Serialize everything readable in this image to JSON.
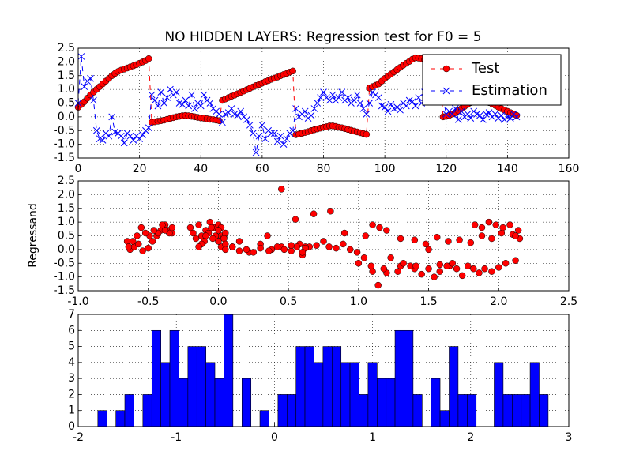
{
  "chart_data": [
    {
      "type": "line",
      "title": "NO HIDDEN LAYERS: Regression test for F0 = 5",
      "x": [
        0,
        1,
        2,
        3,
        4,
        5,
        6,
        7,
        8,
        9,
        10,
        11,
        12,
        13,
        14,
        15,
        16,
        17,
        18,
        19,
        20,
        21,
        22,
        23,
        24,
        25,
        26,
        27,
        28,
        29,
        30,
        31,
        32,
        33,
        34,
        35,
        36,
        37,
        38,
        39,
        40,
        41,
        42,
        43,
        44,
        45,
        46,
        47,
        48,
        49,
        50,
        51,
        52,
        53,
        54,
        55,
        56,
        57,
        58,
        59,
        60,
        61,
        62,
        63,
        64,
        65,
        66,
        67,
        68,
        69,
        70,
        71,
        72,
        73,
        74,
        75,
        76,
        77,
        78,
        79,
        80,
        81,
        82,
        83,
        84,
        85,
        86,
        87,
        88,
        89,
        90,
        91,
        92,
        93,
        94,
        95,
        96,
        97,
        98,
        99,
        100,
        101,
        102,
        103,
        104,
        105,
        106,
        107,
        108,
        109,
        110,
        111,
        112,
        113,
        114,
        115,
        116,
        117,
        118,
        119,
        120,
        121,
        122,
        123,
        124,
        125,
        126,
        127,
        128,
        129,
        130,
        131,
        132,
        133,
        134,
        135,
        136,
        137,
        138,
        139,
        140,
        141,
        142,
        143
      ],
      "xlim": [
        0,
        160
      ],
      "xticks": [
        0,
        20,
        40,
        60,
        80,
        100,
        120,
        140,
        160
      ],
      "ylim": [
        -1.5,
        2.5
      ],
      "yticks": [
        -1.5,
        {
          "value": -1,
          "label": "-1.0"
        },
        -0.5,
        {
          "value": 0,
          "label": "0.0"
        },
        0.5,
        {
          "value": 1,
          "label": "1.0"
        },
        1.5,
        {
          "value": 2,
          "label": "2.0"
        },
        2.5
      ],
      "grid": true,
      "legend": "upper right",
      "series": [
        {
          "name": "Test",
          "color": "#ff0000",
          "marker": "o",
          "values": [
            0.35,
            0.45,
            0.55,
            0.68,
            0.8,
            0.9,
            1.0,
            1.1,
            1.2,
            1.3,
            1.4,
            1.5,
            1.58,
            1.65,
            1.7,
            1.74,
            1.78,
            1.82,
            1.86,
            1.9,
            1.95,
            2.0,
            2.05,
            2.12,
            -0.2,
            -0.18,
            -0.16,
            -0.14,
            -0.12,
            -0.09,
            -0.06,
            -0.03,
            0.0,
            0.02,
            0.04,
            0.05,
            0.04,
            0.02,
            0.0,
            -0.02,
            -0.04,
            -0.05,
            -0.07,
            -0.09,
            -0.1,
            -0.12,
            -0.14,
            0.6,
            0.65,
            0.7,
            0.75,
            0.79,
            0.84,
            0.89,
            0.94,
            0.99,
            1.04,
            1.09,
            1.14,
            1.18,
            1.23,
            1.28,
            1.32,
            1.37,
            1.41,
            1.45,
            1.5,
            1.54,
            1.58,
            1.63,
            1.67,
            -0.65,
            -0.63,
            -0.6,
            -0.57,
            -0.54,
            -0.5,
            -0.47,
            -0.44,
            -0.41,
            -0.38,
            -0.36,
            -0.33,
            -0.33,
            -0.35,
            -0.38,
            -0.4,
            -0.43,
            -0.46,
            -0.49,
            -0.52,
            -0.55,
            -0.58,
            -0.61,
            -0.64,
            1.05,
            1.1,
            1.15,
            1.2,
            1.3,
            1.4,
            1.48,
            1.56,
            1.64,
            1.72,
            1.8,
            1.88,
            1.95,
            2.02,
            2.1,
            2.15,
            2.14,
            2.12,
            2.08,
            2.03,
            1.98,
            1.93,
            1.88,
            1.83,
            0.0,
            0.02,
            0.05,
            0.1,
            0.15,
            0.22,
            0.3,
            0.38,
            0.45,
            0.52,
            0.58,
            0.62,
            0.62,
            0.6,
            0.56,
            0.52,
            0.47,
            0.42,
            0.36,
            0.3,
            0.25,
            0.2,
            0.15,
            0.1,
            0.05
          ]
        },
        {
          "name": "Estimation",
          "color": "#0000ff",
          "marker": "x",
          "values": [
            0.5,
            2.2,
            1.1,
            1.3,
            1.4,
            0.6,
            -0.5,
            -0.8,
            -0.85,
            -0.6,
            -0.7,
            0.0,
            -0.55,
            -0.6,
            -0.7,
            -0.95,
            -0.6,
            -0.7,
            -0.85,
            -0.7,
            -0.8,
            -0.65,
            -0.5,
            -0.4,
            0.8,
            0.6,
            0.4,
            0.9,
            0.5,
            0.7,
            1.0,
            0.8,
            0.9,
            0.5,
            0.45,
            0.6,
            0.4,
            0.8,
            0.3,
            0.5,
            0.4,
            0.8,
            0.6,
            0.5,
            0.3,
            0.2,
            0.1,
            -0.2,
            0.1,
            0.15,
            0.3,
            0.1,
            0.05,
            0.2,
            0.0,
            -0.1,
            -0.3,
            -0.6,
            -1.3,
            -0.7,
            -0.3,
            -0.8,
            -0.5,
            -0.6,
            -0.6,
            -0.9,
            -0.7,
            -1.0,
            -0.8,
            -0.6,
            -0.5,
            0.3,
            0.0,
            0.1,
            0.2,
            -0.05,
            0.05,
            0.3,
            0.5,
            0.7,
            0.9,
            0.7,
            0.6,
            0.8,
            0.6,
            0.7,
            0.9,
            0.6,
            0.7,
            0.5,
            0.6,
            0.8,
            0.5,
            0.3,
            0.1,
            0.5,
            0.9,
            0.8,
            0.7,
            0.4,
            0.35,
            0.2,
            0.45,
            0.3,
            0.35,
            0.25,
            0.5,
            0.4,
            0.6,
            0.55,
            0.4,
            0.7,
            0.5,
            0.9,
            0.8,
            0.9,
            1.0,
            0.8,
            0.9,
            0.7,
            0.1,
            0.2,
            0.1,
            0.3,
            -0.1,
            0.2,
            0.0,
            0.1,
            -0.05,
            0.2,
            0.1,
            0.05,
            -0.1,
            0.1,
            0.15,
            0.0,
            0.1,
            -0.05,
            0.05,
            -0.1,
            0.0,
            -0.05,
            0.1,
            0.0
          ]
        }
      ]
    },
    {
      "type": "scatter",
      "y_label": "Regressand",
      "color": "#ff0000",
      "x": [
        0.35,
        0.45,
        0.55,
        0.68,
        0.8,
        0.9,
        1.0,
        1.1,
        1.2,
        1.3,
        1.4,
        1.5,
        1.58,
        1.65,
        1.7,
        1.74,
        1.78,
        1.82,
        1.86,
        1.9,
        1.95,
        2.0,
        2.05,
        2.12,
        -0.2,
        -0.18,
        -0.16,
        -0.14,
        -0.12,
        -0.09,
        -0.06,
        -0.03,
        0.0,
        0.02,
        0.04,
        0.05,
        0.04,
        0.02,
        0.0,
        -0.02,
        -0.04,
        -0.05,
        -0.07,
        -0.09,
        -0.1,
        -0.12,
        -0.14,
        0.6,
        0.65,
        0.7,
        0.75,
        0.79,
        0.84,
        0.89,
        0.94,
        0.99,
        1.04,
        1.09,
        1.14,
        1.18,
        1.23,
        1.28,
        1.32,
        1.37,
        1.41,
        1.45,
        1.5,
        1.54,
        1.58,
        1.63,
        1.67,
        -0.65,
        -0.63,
        -0.6,
        -0.57,
        -0.54,
        -0.5,
        -0.47,
        -0.44,
        -0.41,
        -0.38,
        -0.36,
        -0.33,
        -0.33,
        -0.35,
        -0.38,
        -0.4,
        -0.43,
        -0.46,
        -0.49,
        -0.52,
        -0.55,
        -0.58,
        -0.61,
        -0.64,
        1.05,
        1.1,
        1.15,
        1.2,
        1.3,
        1.4,
        1.48,
        1.56,
        1.64,
        1.72,
        1.8,
        1.88,
        1.95,
        2.02,
        2.1,
        2.15,
        2.14,
        2.12,
        2.08,
        2.03,
        1.98,
        1.93,
        1.88,
        1.83,
        0.0,
        0.02,
        0.05,
        0.1,
        0.15,
        0.22,
        0.3,
        0.38,
        0.45,
        0.52,
        0.58,
        0.62,
        0.62,
        0.6,
        0.56,
        0.52,
        0.47,
        0.42,
        0.36,
        0.3,
        0.25,
        0.2,
        0.15,
        0.1,
        0.05
      ],
      "values": [
        0.5,
        2.2,
        1.1,
        1.3,
        1.4,
        0.6,
        -0.5,
        -0.8,
        -0.85,
        -0.6,
        -0.7,
        0.0,
        -0.55,
        -0.6,
        -0.7,
        -0.95,
        -0.6,
        -0.7,
        -0.85,
        -0.7,
        -0.8,
        -0.65,
        -0.5,
        -0.4,
        0.8,
        0.6,
        0.4,
        0.9,
        0.5,
        0.7,
        1.0,
        0.8,
        0.9,
        0.5,
        0.45,
        0.6,
        0.4,
        0.8,
        0.3,
        0.5,
        0.4,
        0.8,
        0.6,
        0.5,
        0.3,
        0.2,
        0.1,
        -0.2,
        0.1,
        0.15,
        0.3,
        0.1,
        0.05,
        0.2,
        0.0,
        -0.1,
        -0.3,
        -0.6,
        -1.3,
        -0.7,
        -0.3,
        -0.8,
        -0.5,
        -0.6,
        -0.6,
        -0.9,
        -0.7,
        -1.0,
        -0.8,
        -0.6,
        -0.5,
        0.3,
        0.0,
        0.1,
        0.2,
        -0.05,
        0.05,
        0.3,
        0.5,
        0.7,
        0.9,
        0.7,
        0.6,
        0.8,
        0.6,
        0.7,
        0.9,
        0.6,
        0.7,
        0.5,
        0.6,
        0.8,
        0.5,
        0.3,
        0.1,
        0.5,
        0.9,
        0.8,
        0.7,
        0.4,
        0.35,
        0.2,
        0.45,
        0.3,
        0.35,
        0.25,
        0.5,
        0.4,
        0.6,
        0.55,
        0.4,
        0.7,
        0.5,
        0.9,
        0.8,
        0.9,
        1.0,
        0.8,
        0.9,
        0.7,
        0.1,
        0.2,
        0.1,
        0.3,
        -0.1,
        0.2,
        0.0,
        0.1,
        -0.05,
        0.2,
        0.1,
        0.05,
        -0.1,
        0.1,
        0.15,
        0.0,
        0.1,
        -0.05,
        0.05,
        -0.1,
        0.0,
        -0.05,
        0.1,
        0.0
      ],
      "xlim": [
        -1,
        2.5
      ],
      "xticks": [
        {
          "value": -1,
          "label": "-1.0"
        },
        -0.5,
        {
          "value": 0,
          "label": "0.0"
        },
        0.5,
        {
          "value": 1,
          "label": "1.0"
        },
        1.5,
        {
          "value": 2,
          "label": "2.0"
        },
        2.5
      ],
      "ylim": [
        -1.5,
        2.5
      ],
      "yticks": [
        -1.5,
        {
          "value": -1,
          "label": "-1.0"
        },
        -0.5,
        {
          "value": 0,
          "label": "0.0"
        },
        0.5,
        {
          "value": 1,
          "label": "1.0"
        },
        1.5,
        {
          "value": 2,
          "label": "2.0"
        },
        2.5
      ],
      "grid": true
    },
    {
      "type": "histogram",
      "color": "#0000ff",
      "bins": [
        -1.8,
        -1.708,
        -1.616,
        -1.525,
        -1.433,
        -1.341,
        -1.249,
        -1.157,
        -1.066,
        -0.974,
        -0.882,
        -0.79,
        -0.698,
        -0.607,
        -0.515,
        -0.423,
        -0.331,
        -0.239,
        -0.148,
        -0.056,
        0.036,
        0.128,
        0.22,
        0.311,
        0.403,
        0.495,
        0.587,
        0.679,
        0.77,
        0.862,
        0.954,
        1.046,
        1.138,
        1.229,
        1.321,
        1.413,
        1.505,
        1.597,
        1.688,
        1.78,
        1.872,
        1.964,
        2.056,
        2.147,
        2.239,
        2.331,
        2.423,
        2.515,
        2.606,
        2.698,
        2.79
      ],
      "values": [
        1,
        0,
        1,
        2,
        0,
        2,
        6,
        4,
        6,
        3,
        5,
        5,
        4,
        3,
        7,
        0,
        3,
        0,
        1,
        0,
        2,
        2,
        5,
        5,
        4,
        5,
        5,
        4,
        4,
        2,
        4,
        3,
        3,
        6,
        6,
        2,
        0,
        3,
        1,
        5,
        2,
        2,
        0,
        0,
        4,
        2,
        2,
        2,
        4,
        2
      ],
      "xlim": [
        -2,
        3
      ],
      "xticks": [
        -2,
        -1,
        0,
        1,
        2,
        3
      ],
      "ylim": [
        0,
        7
      ],
      "yticks": [
        0,
        1,
        2,
        3,
        4,
        5,
        6,
        7
      ],
      "grid": true
    }
  ]
}
